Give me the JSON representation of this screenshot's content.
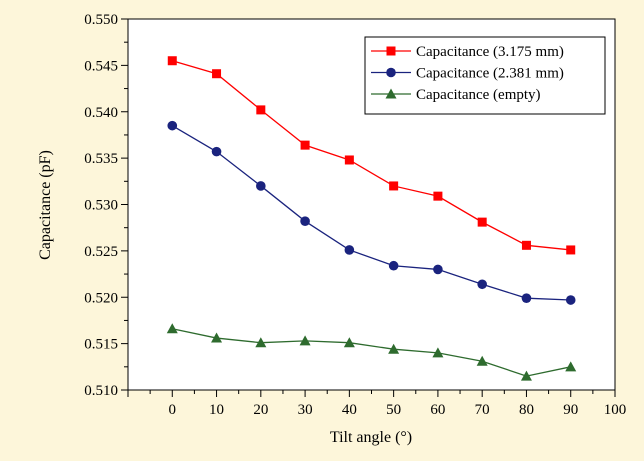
{
  "chart_data": {
    "type": "line",
    "title": "",
    "xlabel": "Tilt angle (°)",
    "ylabel": "Capacitance (pF)",
    "xlim": [
      -10,
      100
    ],
    "ylim": [
      0.51,
      0.55
    ],
    "x_ticks": [
      0,
      10,
      20,
      30,
      40,
      50,
      60,
      70,
      80,
      90,
      100
    ],
    "y_ticks": [
      0.51,
      0.515,
      0.52,
      0.525,
      0.53,
      0.535,
      0.54,
      0.545,
      0.55
    ],
    "y_tick_labels": [
      "0.510",
      "0.515",
      "0.520",
      "0.525",
      "0.530",
      "0.535",
      "0.540",
      "0.545",
      "0.550"
    ],
    "grid": false,
    "legend_position": "top-right",
    "x": [
      0,
      10,
      20,
      30,
      40,
      50,
      60,
      70,
      80,
      90
    ],
    "series": [
      {
        "name": "Capacitance (3.175 mm)",
        "color": "#ff0000",
        "marker": "square",
        "values": [
          0.5455,
          0.5441,
          0.5402,
          0.5364,
          0.5348,
          0.532,
          0.5309,
          0.5281,
          0.5256,
          0.5251
        ]
      },
      {
        "name": "Capacitance (2.381 mm)",
        "color": "#1a237e",
        "marker": "circle",
        "values": [
          0.5385,
          0.5357,
          0.532,
          0.5282,
          0.5251,
          0.5234,
          0.523,
          0.5214,
          0.5199,
          0.5197
        ]
      },
      {
        "name": "Capacitance (empty)",
        "color": "#2e6b2e",
        "marker": "triangle",
        "values": [
          0.5166,
          0.5156,
          0.5151,
          0.5153,
          0.5151,
          0.5144,
          0.514,
          0.5131,
          0.5115,
          0.5125
        ]
      }
    ]
  }
}
